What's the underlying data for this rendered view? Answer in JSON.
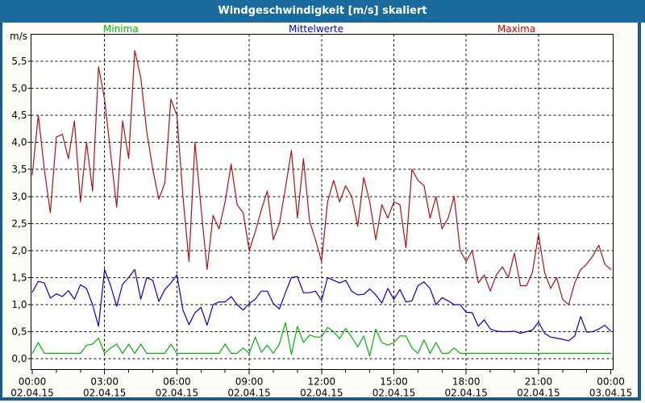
{
  "window": {
    "title": "Windgeschwindigkeit [m/s] skaliert"
  },
  "legend": {
    "items": [
      {
        "label": "Minima",
        "color": "#00b400"
      },
      {
        "label": "Mittelwerte",
        "color": "#0000dd"
      },
      {
        "label": "Maxima",
        "color": "#cc0000"
      }
    ]
  },
  "y_axis": {
    "unit_label": "m/s",
    "ticks": [
      {
        "value": 0.0,
        "label": "0,0"
      },
      {
        "value": 0.5,
        "label": "0,5"
      },
      {
        "value": 1.0,
        "label": "1,0"
      },
      {
        "value": 1.5,
        "label": "1,5"
      },
      {
        "value": 2.0,
        "label": "2,0"
      },
      {
        "value": 2.5,
        "label": "2,5"
      },
      {
        "value": 3.0,
        "label": "3,0"
      },
      {
        "value": 3.5,
        "label": "3,5"
      },
      {
        "value": 4.0,
        "label": "4,0"
      },
      {
        "value": 4.5,
        "label": "4,5"
      },
      {
        "value": 5.0,
        "label": "5,0"
      },
      {
        "value": 5.5,
        "label": "5,5"
      }
    ]
  },
  "x_axis": {
    "ticks": [
      {
        "hour": 0,
        "time": "00:00",
        "date": "02.04.15"
      },
      {
        "hour": 3,
        "time": "03:00",
        "date": "02.04.15"
      },
      {
        "hour": 6,
        "time": "06:00",
        "date": "02.04.15"
      },
      {
        "hour": 9,
        "time": "09:00",
        "date": "02.04.15"
      },
      {
        "hour": 12,
        "time": "12:00",
        "date": "02.04.15"
      },
      {
        "hour": 15,
        "time": "15:00",
        "date": "02.04.15"
      },
      {
        "hour": 18,
        "time": "18:00",
        "date": "02.04.15"
      },
      {
        "hour": 21,
        "time": "21:00",
        "date": "02.04.15"
      },
      {
        "hour": 24,
        "time": "00:00",
        "date": "03.04.15"
      }
    ]
  },
  "chart_data": {
    "type": "line",
    "title": "Windgeschwindigkeit [m/s] skaliert",
    "ylabel": "m/s",
    "xlabel": "",
    "x_unit": "hours",
    "x_range_hours": [
      0,
      24
    ],
    "sample_interval_minutes": 15,
    "ylim": [
      -0.2,
      6.0
    ],
    "y_tick_step": 0.5,
    "grid": "dashed",
    "legend_position": "top",
    "series": [
      {
        "name": "Minima",
        "color": "#00b400",
        "values": [
          0.1,
          0.3,
          0.1,
          0.1,
          0.1,
          0.1,
          0.1,
          0.1,
          0.1,
          0.25,
          0.27,
          0.38,
          0.1,
          0.2,
          0.27,
          0.1,
          0.27,
          0.1,
          0.27,
          0.1,
          0.1,
          0.1,
          0.1,
          0.27,
          0.1,
          0.1,
          0.1,
          0.1,
          0.1,
          0.1,
          0.1,
          0.1,
          0.27,
          0.1,
          0.1,
          0.2,
          0.1,
          0.4,
          0.12,
          0.25,
          0.1,
          0.27,
          0.67,
          0.08,
          0.6,
          0.3,
          0.44,
          0.4,
          0.4,
          0.58,
          0.5,
          0.37,
          0.56,
          0.4,
          0.22,
          0.42,
          0.05,
          0.55,
          0.3,
          0.25,
          0.3,
          0.42,
          0.42,
          0.2,
          0.1,
          0.35,
          0.1,
          0.3,
          0.1,
          0.1,
          0.2,
          0.1,
          0.1,
          0.1,
          0.1,
          0.1,
          0.1,
          0.1,
          0.1,
          0.1,
          0.1,
          0.1,
          0.1,
          0.1,
          0.1,
          0.1,
          0.1,
          0.1,
          0.1,
          0.1,
          0.1,
          0.1,
          0.1,
          0.1,
          0.1,
          0.1,
          0.1
        ]
      },
      {
        "name": "Mittelwerte",
        "color": "#0000cc",
        "values": [
          1.23,
          1.43,
          1.4,
          1.12,
          1.2,
          1.15,
          1.26,
          1.1,
          1.37,
          1.3,
          1.0,
          0.6,
          1.65,
          1.35,
          0.97,
          1.38,
          1.5,
          1.65,
          1.1,
          1.5,
          1.45,
          1.06,
          1.28,
          1.4,
          1.55,
          0.9,
          0.63,
          0.85,
          0.95,
          0.62,
          1.0,
          1.05,
          1.05,
          1.15,
          1.0,
          0.9,
          1.02,
          1.1,
          1.25,
          1.25,
          1.02,
          0.92,
          1.22,
          1.5,
          1.52,
          1.22,
          1.22,
          1.25,
          1.08,
          1.5,
          1.45,
          1.4,
          1.45,
          1.25,
          1.18,
          1.19,
          1.29,
          1.18,
          1.03,
          1.3,
          1.1,
          1.28,
          1.05,
          1.07,
          1.35,
          1.42,
          1.3,
          1.0,
          1.13,
          1.07,
          1.0,
          1.0,
          0.86,
          0.85,
          0.6,
          0.72,
          0.55,
          0.51,
          0.5,
          0.5,
          0.51,
          0.47,
          0.5,
          0.53,
          0.68,
          0.47,
          0.4,
          0.38,
          0.36,
          0.33,
          0.42,
          0.78,
          0.49,
          0.5,
          0.55,
          0.62,
          0.51
        ]
      },
      {
        "name": "Maxima",
        "color": "#b01010",
        "values": [
          3.4,
          4.5,
          3.5,
          2.7,
          4.1,
          4.15,
          3.7,
          4.4,
          2.9,
          4.0,
          3.1,
          5.4,
          4.8,
          3.8,
          2.8,
          4.4,
          3.7,
          5.7,
          5.2,
          4.2,
          3.5,
          2.95,
          3.25,
          4.8,
          4.5,
          3.0,
          1.8,
          4.0,
          2.8,
          1.65,
          2.65,
          2.4,
          2.9,
          3.6,
          2.85,
          2.7,
          2.0,
          2.35,
          2.75,
          3.1,
          2.2,
          2.5,
          3.15,
          3.85,
          2.6,
          3.7,
          2.55,
          2.2,
          1.8,
          2.9,
          3.3,
          2.9,
          3.2,
          3.0,
          2.45,
          3.35,
          2.9,
          2.2,
          2.85,
          2.6,
          2.9,
          2.85,
          2.05,
          3.5,
          3.3,
          3.2,
          2.6,
          3.0,
          2.4,
          2.6,
          3.0,
          2.0,
          1.8,
          2.0,
          1.4,
          1.55,
          1.25,
          1.55,
          1.7,
          1.5,
          1.95,
          1.35,
          1.35,
          1.6,
          2.3,
          1.6,
          1.3,
          1.5,
          1.1,
          1.0,
          1.4,
          1.65,
          1.75,
          1.9,
          2.1,
          1.75,
          1.65
        ]
      }
    ]
  }
}
